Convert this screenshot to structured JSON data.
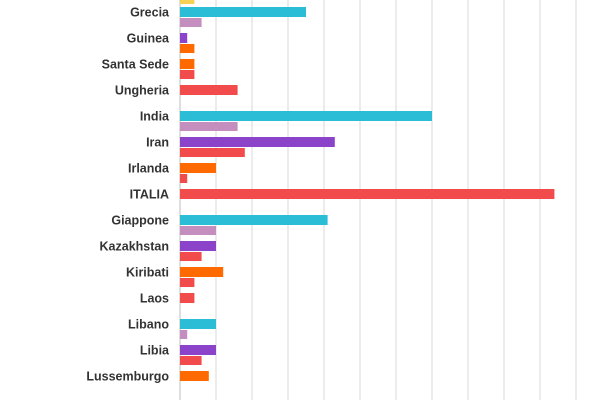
{
  "chart_data": {
    "type": "bar",
    "orientation": "horizontal",
    "categories": [
      "Grecia",
      "Guinea",
      "Santa Sede",
      "Ungheria",
      "India",
      "Iran",
      "Irlanda",
      "ITALIA",
      "Giappone",
      "Kazakhstan",
      "Kiribati",
      "Laos",
      "Libano",
      "Libia",
      "Lussemburgo"
    ],
    "values": [
      35,
      2,
      4,
      16,
      70,
      43,
      10,
      104,
      41,
      10,
      12,
      4,
      10,
      10,
      8
    ],
    "bar_colors": [
      "#2bbcd6",
      "#8b44c9",
      "#ff6a00",
      "#f14b4b",
      "#2bbcd6",
      "#8b44c9",
      "#ff6a00",
      "#f14b4b",
      "#2bbcd6",
      "#8b44c9",
      "#ff6a00",
      "#f14b4b",
      "#2bbcd6",
      "#8b44c9",
      "#ff6a00"
    ],
    "spacer_bars": [
      {
        "after": "Grecia",
        "values": [
          6,
          0,
          0
        ]
      },
      {
        "after": "Guinea",
        "values": [
          0,
          4,
          0
        ]
      },
      {
        "after": "Santa Sede",
        "values": [
          0,
          0,
          4
        ]
      },
      {
        "after": "Ungheria",
        "values": [
          0,
          0,
          0
        ]
      },
      {
        "after": "India",
        "values": [
          16,
          0,
          0
        ]
      },
      {
        "after": "Iran",
        "values": [
          0,
          4,
          18
        ]
      },
      {
        "after": "Irlanda",
        "values": [
          0,
          0,
          2
        ]
      },
      {
        "after": "ITALIA",
        "values": [
          0,
          0,
          0
        ]
      },
      {
        "after": "Giappone",
        "values": [
          10,
          0,
          0
        ]
      },
      {
        "after": "Kazakhstan",
        "values": [
          0,
          2,
          6
        ]
      },
      {
        "after": "Kiribati",
        "values": [
          0,
          0,
          4
        ]
      },
      {
        "after": "Laos",
        "values": [
          0,
          0,
          0
        ]
      },
      {
        "after": "Libano",
        "values": [
          2,
          0,
          0
        ]
      },
      {
        "after": "Libia",
        "values": [
          0,
          2,
          6
        ]
      },
      {
        "after": "Lussemburgo",
        "values": [
          0,
          0,
          0
        ]
      }
    ],
    "spacer_colors": [
      "#c48fbf",
      "#ff6a00",
      "#f14b4b"
    ],
    "top_partial_bar": {
      "value": 4,
      "color": "#f7d154"
    },
    "xlim": [
      0,
      110
    ],
    "tick_step": 10,
    "grid": true,
    "title": "",
    "xlabel": "",
    "ylabel": ""
  }
}
